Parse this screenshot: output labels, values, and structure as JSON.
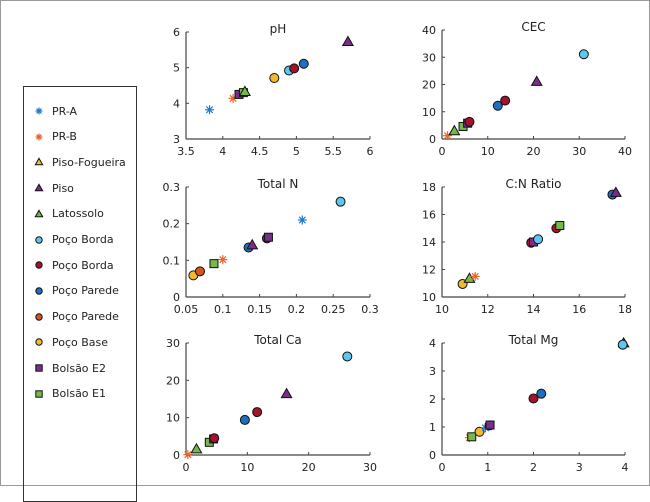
{
  "legend": {
    "entries": [
      {
        "label": "PR-A",
        "marker": "asterisk",
        "color": "#1f78c8"
      },
      {
        "label": "PR-B",
        "marker": "asterisk",
        "color": "#e8622a"
      },
      {
        "label": "Piso-Fogueira",
        "marker": "triangle",
        "color": "#f0c030"
      },
      {
        "label": "Piso",
        "marker": "triangle",
        "color": "#7b2d8e"
      },
      {
        "label": "Latossolo",
        "marker": "triangle",
        "color": "#77b84a"
      },
      {
        "label": "Poço Borda",
        "marker": "circle",
        "color": "#5bc8f0"
      },
      {
        "label": "Poço Borda",
        "marker": "circle",
        "color": "#a3132c"
      },
      {
        "label": "Poço Parede",
        "marker": "circle",
        "color": "#1f6fbf"
      },
      {
        "label": "Poço Parede",
        "marker": "circle",
        "color": "#d9541a"
      },
      {
        "label": "Poço Base",
        "marker": "circle",
        "color": "#f2b92e"
      },
      {
        "label": "Bolsão E2",
        "marker": "square",
        "color": "#7b2d8e"
      },
      {
        "label": "Bolsão E1",
        "marker": "square",
        "color": "#77b84a"
      }
    ]
  },
  "chart_data": [
    {
      "type": "scatter",
      "title": "pH",
      "xlim": [
        3.5,
        6
      ],
      "ylim": [
        3,
        6
      ],
      "xticks": [
        "3.5",
        "4",
        "4.5",
        "5",
        "5.5",
        "6"
      ],
      "yticks": [
        "3",
        "4",
        "5",
        "6"
      ],
      "xtick_values": [
        3.5,
        4,
        4.5,
        5,
        5.5,
        6
      ],
      "ytick_values": [
        3,
        4,
        5,
        6
      ],
      "points": [
        {
          "series": 0,
          "x": 3.82,
          "y": 3.82
        },
        {
          "series": 1,
          "x": 4.14,
          "y": 4.14
        },
        {
          "series": 10,
          "x": 4.22,
          "y": 4.25
        },
        {
          "series": 11,
          "x": 4.28,
          "y": 4.3
        },
        {
          "series": 4,
          "x": 4.3,
          "y": 4.33
        },
        {
          "series": 9,
          "x": 4.7,
          "y": 4.71
        },
        {
          "series": 5,
          "x": 4.9,
          "y": 4.92
        },
        {
          "series": 6,
          "x": 4.97,
          "y": 4.98
        },
        {
          "series": 7,
          "x": 5.1,
          "y": 5.11
        },
        {
          "series": 3,
          "x": 5.7,
          "y": 5.73
        }
      ]
    },
    {
      "type": "scatter",
      "title": "CEC",
      "xlim": [
        0,
        40
      ],
      "ylim": [
        0,
        40
      ],
      "xticks": [
        "0",
        "10",
        "20",
        "30",
        "40"
      ],
      "yticks": [
        "0",
        "10",
        "20",
        "30",
        "40"
      ],
      "xtick_values": [
        0,
        10,
        20,
        30,
        40
      ],
      "ytick_values": [
        0,
        10,
        20,
        30,
        40
      ],
      "points": [
        {
          "series": 1,
          "x": 1.2,
          "y": 1.2
        },
        {
          "series": 4,
          "x": 2.7,
          "y": 3.0
        },
        {
          "series": 11,
          "x": 4.6,
          "y": 4.6
        },
        {
          "series": 10,
          "x": 5.6,
          "y": 5.8
        },
        {
          "series": 6,
          "x": 6.0,
          "y": 6.3
        },
        {
          "series": 7,
          "x": 12.2,
          "y": 12.2
        },
        {
          "series": 6,
          "x": 13.8,
          "y": 14.1
        },
        {
          "series": 3,
          "x": 20.7,
          "y": 21.1
        },
        {
          "series": 5,
          "x": 31.0,
          "y": 31.1
        }
      ]
    },
    {
      "type": "scatter",
      "title": "Total N",
      "xlim": [
        0.05,
        0.3
      ],
      "ylim": [
        0,
        0.3
      ],
      "xticks": [
        "0.05",
        "0.1",
        "0.15",
        "0.2",
        "0.25",
        "0.3"
      ],
      "yticks": [
        "0",
        "0.1",
        "0.2",
        "0.3"
      ],
      "xtick_values": [
        0.05,
        0.1,
        0.15,
        0.2,
        0.25,
        0.3
      ],
      "ytick_values": [
        0,
        0.1,
        0.2,
        0.3
      ],
      "points": [
        {
          "series": 9,
          "x": 0.06,
          "y": 0.059
        },
        {
          "series": 8,
          "x": 0.069,
          "y": 0.07
        },
        {
          "series": 11,
          "x": 0.088,
          "y": 0.091
        },
        {
          "series": 1,
          "x": 0.1,
          "y": 0.102
        },
        {
          "series": 7,
          "x": 0.135,
          "y": 0.135
        },
        {
          "series": 3,
          "x": 0.14,
          "y": 0.142
        },
        {
          "series": 6,
          "x": 0.16,
          "y": 0.16
        },
        {
          "series": 10,
          "x": 0.162,
          "y": 0.163
        },
        {
          "series": 0,
          "x": 0.208,
          "y": 0.21
        },
        {
          "series": 5,
          "x": 0.26,
          "y": 0.26
        }
      ]
    },
    {
      "type": "scatter",
      "title": "C:N Ratio",
      "xlim": [
        10,
        18
      ],
      "ylim": [
        10,
        18
      ],
      "xticks": [
        "10",
        "12",
        "14",
        "16",
        "18"
      ],
      "yticks": [
        "10",
        "12",
        "14",
        "16",
        "18"
      ],
      "xtick_values": [
        10,
        12,
        14,
        16,
        18
      ],
      "ytick_values": [
        10,
        12,
        14,
        16,
        18
      ],
      "points": [
        {
          "series": 9,
          "x": 10.9,
          "y": 10.95
        },
        {
          "series": 4,
          "x": 11.2,
          "y": 11.35
        },
        {
          "series": 1,
          "x": 11.45,
          "y": 11.5
        },
        {
          "series": 6,
          "x": 13.9,
          "y": 13.95
        },
        {
          "series": 10,
          "x": 14.0,
          "y": 14.0
        },
        {
          "series": 5,
          "x": 14.2,
          "y": 14.2
        },
        {
          "series": 6,
          "x": 15.0,
          "y": 15.0
        },
        {
          "series": 11,
          "x": 15.15,
          "y": 15.2
        },
        {
          "series": 7,
          "x": 17.45,
          "y": 17.45
        },
        {
          "series": 3,
          "x": 17.6,
          "y": 17.6
        }
      ]
    },
    {
      "type": "scatter",
      "title": "Total Ca",
      "xlim": [
        0,
        30
      ],
      "ylim": [
        0,
        30
      ],
      "xticks": [
        "0",
        "10",
        "20",
        "30"
      ],
      "yticks": [
        "0",
        "10",
        "20",
        "30"
      ],
      "xtick_values": [
        0,
        10,
        20,
        30
      ],
      "ytick_values": [
        0,
        10,
        20,
        30
      ],
      "points": [
        {
          "series": 1,
          "x": 0.3,
          "y": 0.1
        },
        {
          "series": 4,
          "x": 1.7,
          "y": 1.6
        },
        {
          "series": 11,
          "x": 3.8,
          "y": 3.4
        },
        {
          "series": 10,
          "x": 4.5,
          "y": 4.3
        },
        {
          "series": 6,
          "x": 4.6,
          "y": 4.5
        },
        {
          "series": 7,
          "x": 9.6,
          "y": 9.4
        },
        {
          "series": 6,
          "x": 11.6,
          "y": 11.5
        },
        {
          "series": 3,
          "x": 16.4,
          "y": 16.4
        },
        {
          "series": 5,
          "x": 26.3,
          "y": 26.4
        }
      ]
    },
    {
      "type": "scatter",
      "title": "Total Mg",
      "xlim": [
        0,
        4
      ],
      "ylim": [
        0,
        4
      ],
      "xticks": [
        "0",
        "1",
        "2",
        "3",
        "4"
      ],
      "yticks": [
        "0",
        "1",
        "2",
        "3",
        "4"
      ],
      "xtick_values": [
        0,
        1,
        2,
        3,
        4
      ],
      "ytick_values": [
        0,
        1,
        2,
        3,
        4
      ],
      "points": [
        {
          "series": 1,
          "x": 0.6,
          "y": 0.62
        },
        {
          "series": 11,
          "x": 0.65,
          "y": 0.65
        },
        {
          "series": 9,
          "x": 0.82,
          "y": 0.83
        },
        {
          "series": 0,
          "x": 0.95,
          "y": 0.97
        },
        {
          "series": 6,
          "x": 1.04,
          "y": 1.06
        },
        {
          "series": 10,
          "x": 1.05,
          "y": 1.07
        },
        {
          "series": 6,
          "x": 2.0,
          "y": 2.02
        },
        {
          "series": 7,
          "x": 2.17,
          "y": 2.19
        },
        {
          "series": 3,
          "x": 3.97,
          "y": 4.0
        },
        {
          "series": 5,
          "x": 3.95,
          "y": 3.94
        }
      ]
    }
  ]
}
